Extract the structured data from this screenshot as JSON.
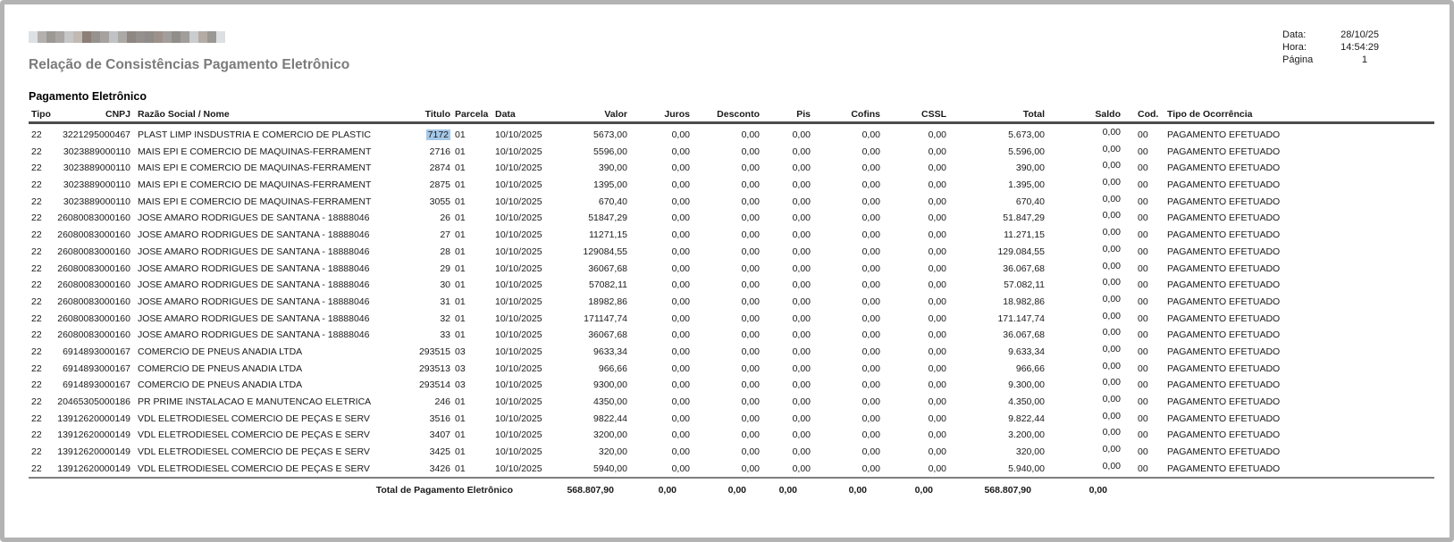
{
  "page": {
    "title": "Relação de Consistências Pagamento Eletrônico",
    "section_title": "Pagamento Eletrônico",
    "meta": {
      "date_label": "Data:",
      "date_value": "28/10/25",
      "time_label": "Hora:",
      "time_value": "14:54:29",
      "page_label": "Página",
      "page_value": "1"
    }
  },
  "table": {
    "columns": [
      {
        "key": "tipo",
        "label": "Tipo"
      },
      {
        "key": "cnpj",
        "label": "CNPJ"
      },
      {
        "key": "razao",
        "label": "Razão Social / Nome"
      },
      {
        "key": "titulo",
        "label": "Titulo"
      },
      {
        "key": "parcela",
        "label": "Parcela"
      },
      {
        "key": "data",
        "label": "Data"
      },
      {
        "key": "valor",
        "label": "Valor"
      },
      {
        "key": "juros",
        "label": "Juros"
      },
      {
        "key": "desconto",
        "label": "Desconto"
      },
      {
        "key": "pis",
        "label": "Pis"
      },
      {
        "key": "cofins",
        "label": "Cofins"
      },
      {
        "key": "cssl",
        "label": "CSSL"
      },
      {
        "key": "total",
        "label": "Total"
      },
      {
        "key": "saldo",
        "label": "Saldo"
      },
      {
        "key": "cod",
        "label": "Cod."
      },
      {
        "key": "ocorrencia",
        "label": "Tipo de Ocorrência"
      }
    ],
    "highlight": {
      "row": 0,
      "column": "titulo",
      "color": "#a4c8e8"
    },
    "rows": [
      {
        "tipo": "22",
        "cnpj": "3221295000467",
        "razao": "PLAST LIMP INSDUSTRIA E COMERCIO DE PLASTIC",
        "titulo": "7172",
        "parcela": "01",
        "data": "10/10/2025",
        "valor": "5673,00",
        "juros": "0,00",
        "desconto": "0,00",
        "pis": "0,00",
        "cofins": "0,00",
        "cssl": "0,00",
        "total": "5.673,00",
        "saldo": "0,00",
        "cod": "00",
        "ocorrencia": "PAGAMENTO EFETUADO"
      },
      {
        "tipo": "22",
        "cnpj": "3023889000110",
        "razao": "MAIS EPI E COMERCIO DE MAQUINAS-FERRAMENT",
        "titulo": "2716",
        "parcela": "01",
        "data": "10/10/2025",
        "valor": "5596,00",
        "juros": "0,00",
        "desconto": "0,00",
        "pis": "0,00",
        "cofins": "0,00",
        "cssl": "0,00",
        "total": "5.596,00",
        "saldo": "0,00",
        "cod": "00",
        "ocorrencia": "PAGAMENTO EFETUADO"
      },
      {
        "tipo": "22",
        "cnpj": "3023889000110",
        "razao": "MAIS EPI E COMERCIO DE MAQUINAS-FERRAMENT",
        "titulo": "2874",
        "parcela": "01",
        "data": "10/10/2025",
        "valor": "390,00",
        "juros": "0,00",
        "desconto": "0,00",
        "pis": "0,00",
        "cofins": "0,00",
        "cssl": "0,00",
        "total": "390,00",
        "saldo": "0,00",
        "cod": "00",
        "ocorrencia": "PAGAMENTO EFETUADO"
      },
      {
        "tipo": "22",
        "cnpj": "3023889000110",
        "razao": "MAIS EPI E COMERCIO DE MAQUINAS-FERRAMENT",
        "titulo": "2875",
        "parcela": "01",
        "data": "10/10/2025",
        "valor": "1395,00",
        "juros": "0,00",
        "desconto": "0,00",
        "pis": "0,00",
        "cofins": "0,00",
        "cssl": "0,00",
        "total": "1.395,00",
        "saldo": "0,00",
        "cod": "00",
        "ocorrencia": "PAGAMENTO EFETUADO"
      },
      {
        "tipo": "22",
        "cnpj": "3023889000110",
        "razao": "MAIS EPI E COMERCIO DE MAQUINAS-FERRAMENT",
        "titulo": "3055",
        "parcela": "01",
        "data": "10/10/2025",
        "valor": "670,40",
        "juros": "0,00",
        "desconto": "0,00",
        "pis": "0,00",
        "cofins": "0,00",
        "cssl": "0,00",
        "total": "670,40",
        "saldo": "0,00",
        "cod": "00",
        "ocorrencia": "PAGAMENTO EFETUADO"
      },
      {
        "tipo": "22",
        "cnpj": "26080083000160",
        "razao": "JOSE AMARO RODRIGUES DE SANTANA - 18888046",
        "titulo": "26",
        "parcela": "01",
        "data": "10/10/2025",
        "valor": "51847,29",
        "juros": "0,00",
        "desconto": "0,00",
        "pis": "0,00",
        "cofins": "0,00",
        "cssl": "0,00",
        "total": "51.847,29",
        "saldo": "0,00",
        "cod": "00",
        "ocorrencia": "PAGAMENTO EFETUADO"
      },
      {
        "tipo": "22",
        "cnpj": "26080083000160",
        "razao": "JOSE AMARO RODRIGUES DE SANTANA - 18888046",
        "titulo": "27",
        "parcela": "01",
        "data": "10/10/2025",
        "valor": "11271,15",
        "juros": "0,00",
        "desconto": "0,00",
        "pis": "0,00",
        "cofins": "0,00",
        "cssl": "0,00",
        "total": "11.271,15",
        "saldo": "0,00",
        "cod": "00",
        "ocorrencia": "PAGAMENTO EFETUADO"
      },
      {
        "tipo": "22",
        "cnpj": "26080083000160",
        "razao": "JOSE AMARO RODRIGUES DE SANTANA - 18888046",
        "titulo": "28",
        "parcela": "01",
        "data": "10/10/2025",
        "valor": "129084,55",
        "juros": "0,00",
        "desconto": "0,00",
        "pis": "0,00",
        "cofins": "0,00",
        "cssl": "0,00",
        "total": "129.084,55",
        "saldo": "0,00",
        "cod": "00",
        "ocorrencia": "PAGAMENTO EFETUADO"
      },
      {
        "tipo": "22",
        "cnpj": "26080083000160",
        "razao": "JOSE AMARO RODRIGUES DE SANTANA - 18888046",
        "titulo": "29",
        "parcela": "01",
        "data": "10/10/2025",
        "valor": "36067,68",
        "juros": "0,00",
        "desconto": "0,00",
        "pis": "0,00",
        "cofins": "0,00",
        "cssl": "0,00",
        "total": "36.067,68",
        "saldo": "0,00",
        "cod": "00",
        "ocorrencia": "PAGAMENTO EFETUADO"
      },
      {
        "tipo": "22",
        "cnpj": "26080083000160",
        "razao": "JOSE AMARO RODRIGUES DE SANTANA - 18888046",
        "titulo": "30",
        "parcela": "01",
        "data": "10/10/2025",
        "valor": "57082,11",
        "juros": "0,00",
        "desconto": "0,00",
        "pis": "0,00",
        "cofins": "0,00",
        "cssl": "0,00",
        "total": "57.082,11",
        "saldo": "0,00",
        "cod": "00",
        "ocorrencia": "PAGAMENTO EFETUADO"
      },
      {
        "tipo": "22",
        "cnpj": "26080083000160",
        "razao": "JOSE AMARO RODRIGUES DE SANTANA - 18888046",
        "titulo": "31",
        "parcela": "01",
        "data": "10/10/2025",
        "valor": "18982,86",
        "juros": "0,00",
        "desconto": "0,00",
        "pis": "0,00",
        "cofins": "0,00",
        "cssl": "0,00",
        "total": "18.982,86",
        "saldo": "0,00",
        "cod": "00",
        "ocorrencia": "PAGAMENTO EFETUADO"
      },
      {
        "tipo": "22",
        "cnpj": "26080083000160",
        "razao": "JOSE AMARO RODRIGUES DE SANTANA - 18888046",
        "titulo": "32",
        "parcela": "01",
        "data": "10/10/2025",
        "valor": "171147,74",
        "juros": "0,00",
        "desconto": "0,00",
        "pis": "0,00",
        "cofins": "0,00",
        "cssl": "0,00",
        "total": "171.147,74",
        "saldo": "0,00",
        "cod": "00",
        "ocorrencia": "PAGAMENTO EFETUADO"
      },
      {
        "tipo": "22",
        "cnpj": "26080083000160",
        "razao": "JOSE AMARO RODRIGUES DE SANTANA - 18888046",
        "titulo": "33",
        "parcela": "01",
        "data": "10/10/2025",
        "valor": "36067,68",
        "juros": "0,00",
        "desconto": "0,00",
        "pis": "0,00",
        "cofins": "0,00",
        "cssl": "0,00",
        "total": "36.067,68",
        "saldo": "0,00",
        "cod": "00",
        "ocorrencia": "PAGAMENTO EFETUADO"
      },
      {
        "tipo": "22",
        "cnpj": "6914893000167",
        "razao": "COMERCIO DE PNEUS ANADIA LTDA",
        "titulo": "293515",
        "parcela": "03",
        "data": "10/10/2025",
        "valor": "9633,34",
        "juros": "0,00",
        "desconto": "0,00",
        "pis": "0,00",
        "cofins": "0,00",
        "cssl": "0,00",
        "total": "9.633,34",
        "saldo": "0,00",
        "cod": "00",
        "ocorrencia": "PAGAMENTO EFETUADO"
      },
      {
        "tipo": "22",
        "cnpj": "6914893000167",
        "razao": "COMERCIO DE PNEUS ANADIA LTDA",
        "titulo": "293513",
        "parcela": "03",
        "data": "10/10/2025",
        "valor": "966,66",
        "juros": "0,00",
        "desconto": "0,00",
        "pis": "0,00",
        "cofins": "0,00",
        "cssl": "0,00",
        "total": "966,66",
        "saldo": "0,00",
        "cod": "00",
        "ocorrencia": "PAGAMENTO EFETUADO"
      },
      {
        "tipo": "22",
        "cnpj": "6914893000167",
        "razao": "COMERCIO DE PNEUS ANADIA LTDA",
        "titulo": "293514",
        "parcela": "03",
        "data": "10/10/2025",
        "valor": "9300,00",
        "juros": "0,00",
        "desconto": "0,00",
        "pis": "0,00",
        "cofins": "0,00",
        "cssl": "0,00",
        "total": "9.300,00",
        "saldo": "0,00",
        "cod": "00",
        "ocorrencia": "PAGAMENTO EFETUADO"
      },
      {
        "tipo": "22",
        "cnpj": "20465305000186",
        "razao": "PR PRIME INSTALACAO E MANUTENCAO ELETRICA",
        "titulo": "246",
        "parcela": "01",
        "data": "10/10/2025",
        "valor": "4350,00",
        "juros": "0,00",
        "desconto": "0,00",
        "pis": "0,00",
        "cofins": "0,00",
        "cssl": "0,00",
        "total": "4.350,00",
        "saldo": "0,00",
        "cod": "00",
        "ocorrencia": "PAGAMENTO EFETUADO"
      },
      {
        "tipo": "22",
        "cnpj": "13912620000149",
        "razao": "VDL ELETRODIESEL COMERCIO DE PEÇAS E SERV",
        "titulo": "3516",
        "parcela": "01",
        "data": "10/10/2025",
        "valor": "9822,44",
        "juros": "0,00",
        "desconto": "0,00",
        "pis": "0,00",
        "cofins": "0,00",
        "cssl": "0,00",
        "total": "9.822,44",
        "saldo": "0,00",
        "cod": "00",
        "ocorrencia": "PAGAMENTO EFETUADO"
      },
      {
        "tipo": "22",
        "cnpj": "13912620000149",
        "razao": "VDL ELETRODIESEL COMERCIO DE PEÇAS E SERV",
        "titulo": "3407",
        "parcela": "01",
        "data": "10/10/2025",
        "valor": "3200,00",
        "juros": "0,00",
        "desconto": "0,00",
        "pis": "0,00",
        "cofins": "0,00",
        "cssl": "0,00",
        "total": "3.200,00",
        "saldo": "0,00",
        "cod": "00",
        "ocorrencia": "PAGAMENTO EFETUADO"
      },
      {
        "tipo": "22",
        "cnpj": "13912620000149",
        "razao": "VDL ELETRODIESEL COMERCIO DE PEÇAS E SERV",
        "titulo": "3425",
        "parcela": "01",
        "data": "10/10/2025",
        "valor": "320,00",
        "juros": "0,00",
        "desconto": "0,00",
        "pis": "0,00",
        "cofins": "0,00",
        "cssl": "0,00",
        "total": "320,00",
        "saldo": "0,00",
        "cod": "00",
        "ocorrencia": "PAGAMENTO EFETUADO"
      },
      {
        "tipo": "22",
        "cnpj": "13912620000149",
        "razao": "VDL ELETRODIESEL COMERCIO DE PEÇAS E SERV",
        "titulo": "3426",
        "parcela": "01",
        "data": "10/10/2025",
        "valor": "5940,00",
        "juros": "0,00",
        "desconto": "0,00",
        "pis": "0,00",
        "cofins": "0,00",
        "cssl": "0,00",
        "total": "5.940,00",
        "saldo": "0,00",
        "cod": "00",
        "ocorrencia": "PAGAMENTO EFETUADO"
      }
    ],
    "total_row": {
      "label": "Total de Pagamento Eletrônico",
      "valor": "568.807,90",
      "juros": "0,00",
      "desconto": "0,00",
      "pis": "0,00",
      "cofins": "0,00",
      "cssl": "0,00",
      "total": "568.807,90",
      "saldo": "0,00"
    }
  }
}
